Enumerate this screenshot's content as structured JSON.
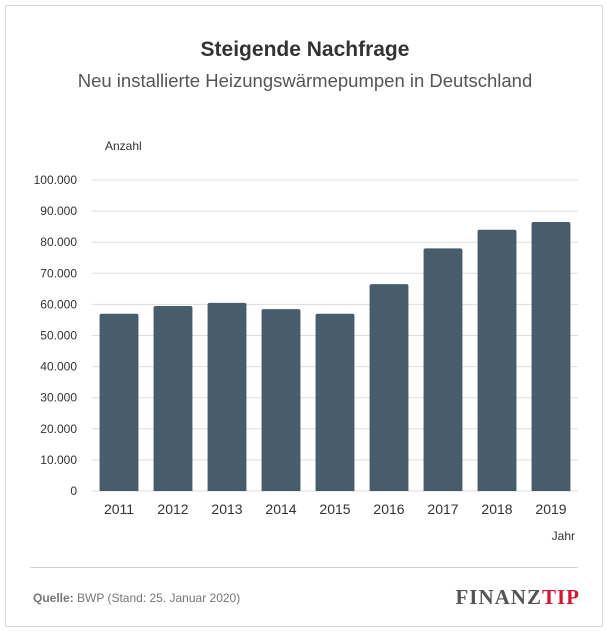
{
  "chart_data": {
    "type": "bar",
    "title": "Steigende Nachfrage",
    "subtitle": "Neu installierte Heizungswärmepumpen in Deutschland",
    "ylabel": "Anzahl",
    "xlabel": "Jahr",
    "categories": [
      "2011",
      "2012",
      "2013",
      "2014",
      "2015",
      "2016",
      "2017",
      "2018",
      "2019"
    ],
    "values": [
      57000,
      59500,
      60500,
      58500,
      57000,
      66500,
      78000,
      84000,
      86500
    ],
    "ylim": [
      0,
      100000
    ],
    "yticks": [
      0,
      10000,
      20000,
      30000,
      40000,
      50000,
      60000,
      70000,
      80000,
      90000,
      100000
    ],
    "ytick_labels": [
      "0",
      "10.000",
      "20.000",
      "30.000",
      "40.000",
      "50.000",
      "60.000",
      "70.000",
      "80.000",
      "90.000",
      "100.000"
    ],
    "grid": true,
    "bar_color": "#485d6b",
    "grid_color": "#dddddd"
  },
  "footer": {
    "source_label": "Quelle:",
    "source_text": " BWP (Stand: 25. Januar 2020)",
    "logo_part1": "FINANZ",
    "logo_part2": "TIP",
    "logo_color_1": "#555555",
    "logo_color_2": "#d7142f"
  }
}
